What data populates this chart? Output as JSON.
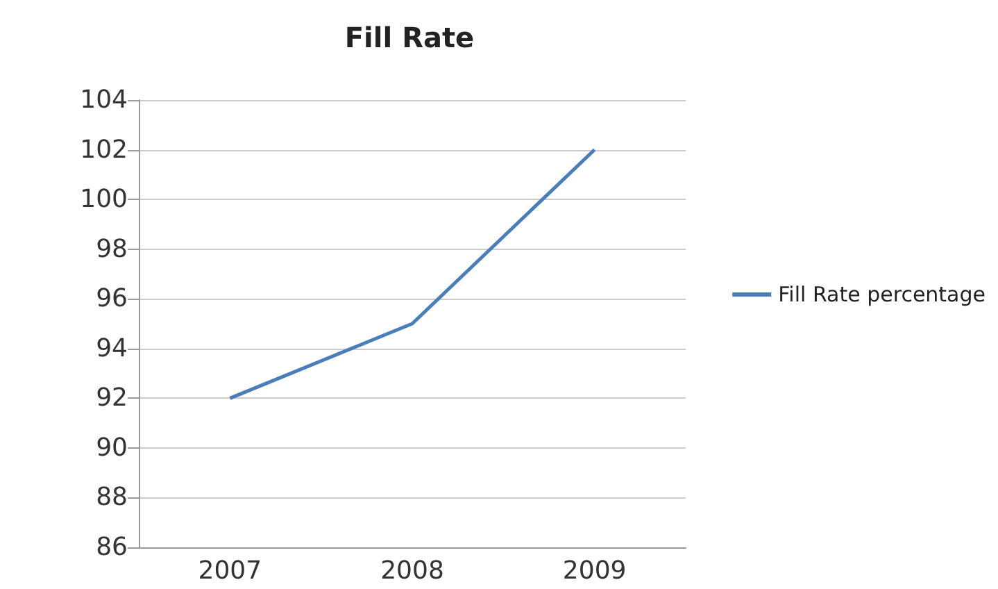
{
  "chart_data": {
    "type": "line",
    "title": "Fill Rate",
    "categories": [
      "2007",
      "2008",
      "2009"
    ],
    "series": [
      {
        "name": "Fill Rate percentage",
        "color": "#4a7ebb",
        "values": [
          92,
          95,
          102
        ]
      }
    ],
    "ylim": [
      86,
      104
    ],
    "yticks": [
      86,
      88,
      90,
      92,
      94,
      96,
      98,
      100,
      102,
      104
    ],
    "grid": true,
    "legend": "right",
    "marker": "none",
    "line_style": "solid"
  }
}
